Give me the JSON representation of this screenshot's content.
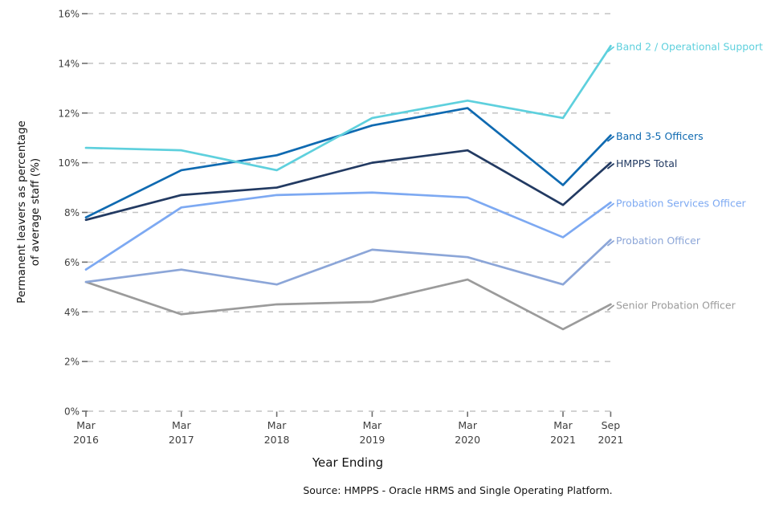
{
  "chart_data": {
    "type": "line",
    "title": "",
    "xlabel": "Year Ending",
    "ylabel_line1": "Permanent leavers as percentage",
    "ylabel_line2": "of average staff (%)",
    "source": "Source: HMPPS - Oracle HRMS and Single Operating Platform.",
    "x_tick_labels": [
      {
        "month": "Mar",
        "year": "2016"
      },
      {
        "month": "Mar",
        "year": "2017"
      },
      {
        "month": "Mar",
        "year": "2018"
      },
      {
        "month": "Mar",
        "year": "2019"
      },
      {
        "month": "Mar",
        "year": "2020"
      },
      {
        "month": "Mar",
        "year": "2021"
      },
      {
        "month": "Sep",
        "year": "2021"
      }
    ],
    "x_months_offset": [
      0,
      12,
      24,
      36,
      48,
      60,
      66
    ],
    "y_ticks": [
      "0%",
      "2%",
      "4%",
      "6%",
      "8%",
      "10%",
      "12%",
      "14%",
      "16%"
    ],
    "y_tick_values": [
      0,
      2,
      4,
      6,
      8,
      10,
      12,
      14,
      16
    ],
    "ylim": [
      0,
      16
    ],
    "grid": "horizontal-dashed",
    "legend_position": "labels-at-line-ends-right",
    "grid_color": "#c3c3c3",
    "tick_color": "#6e6e6e",
    "tick_label_color": "#3f3f3f",
    "series": [
      {
        "name": "Band 2 / Operational Support",
        "color": "#5ed0dd",
        "values": [
          10.6,
          10.5,
          9.7,
          11.8,
          12.5,
          11.8,
          14.7
        ]
      },
      {
        "name": "Band 3-5 Officers",
        "color": "#0f6ab1",
        "values": [
          7.8,
          9.7,
          10.3,
          11.5,
          12.2,
          9.1,
          11.1
        ]
      },
      {
        "name": "HMPPS Total",
        "color": "#223a62",
        "values": [
          7.7,
          8.7,
          9.0,
          10.0,
          10.5,
          8.3,
          10.0
        ]
      },
      {
        "name": "Probation Services Officer",
        "color": "#7da9f2",
        "values": [
          5.7,
          8.2,
          8.7,
          8.8,
          8.6,
          7.0,
          8.4
        ]
      },
      {
        "name": "Probation Officer",
        "color": "#8ca6d8",
        "values": [
          5.2,
          5.7,
          5.1,
          6.5,
          6.2,
          5.1,
          6.9
        ]
      },
      {
        "name": "Senior Probation Officer",
        "color": "#9b9b9b",
        "values": [
          5.2,
          3.9,
          4.3,
          4.4,
          5.3,
          3.3,
          4.3
        ]
      }
    ]
  }
}
